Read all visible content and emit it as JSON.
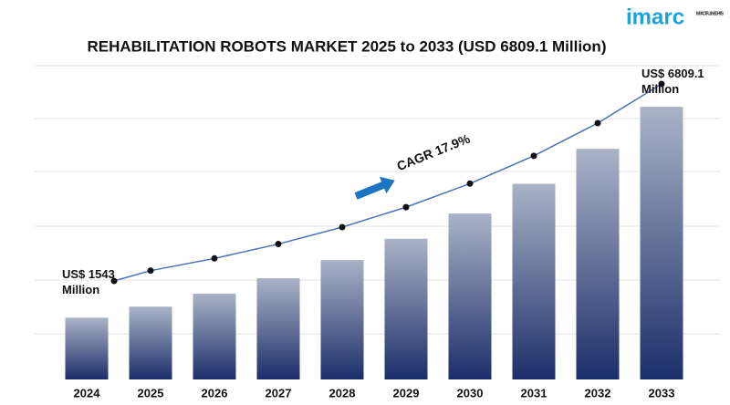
{
  "chart_data": {
    "type": "bar",
    "title": "REHABILITATION ROBOTS MARKET 2025 to 2033 (USD 6809.1 Million)",
    "categories": [
      "2024",
      "2025",
      "2026",
      "2027",
      "2028",
      "2029",
      "2030",
      "2031",
      "2032",
      "2033"
    ],
    "values": [
      1543,
      1819,
      2145,
      2529,
      2982,
      3515,
      4145,
      4887,
      5761,
      6809.1
    ],
    "value_labels": [
      "US$ 1543 Million",
      null,
      null,
      null,
      null,
      null,
      null,
      null,
      null,
      "US$ 6809.1 Million"
    ],
    "ylim": [
      0,
      7200
    ],
    "annotation": "CAGR 17.9%",
    "trend_line": true,
    "color_top": "#aab3c7",
    "color_bottom": "#1c2e6a",
    "line_color": "#4a72b8"
  },
  "logo": {
    "name": "imarc",
    "tagline": "IMPACTFUL INSIGHTS"
  }
}
